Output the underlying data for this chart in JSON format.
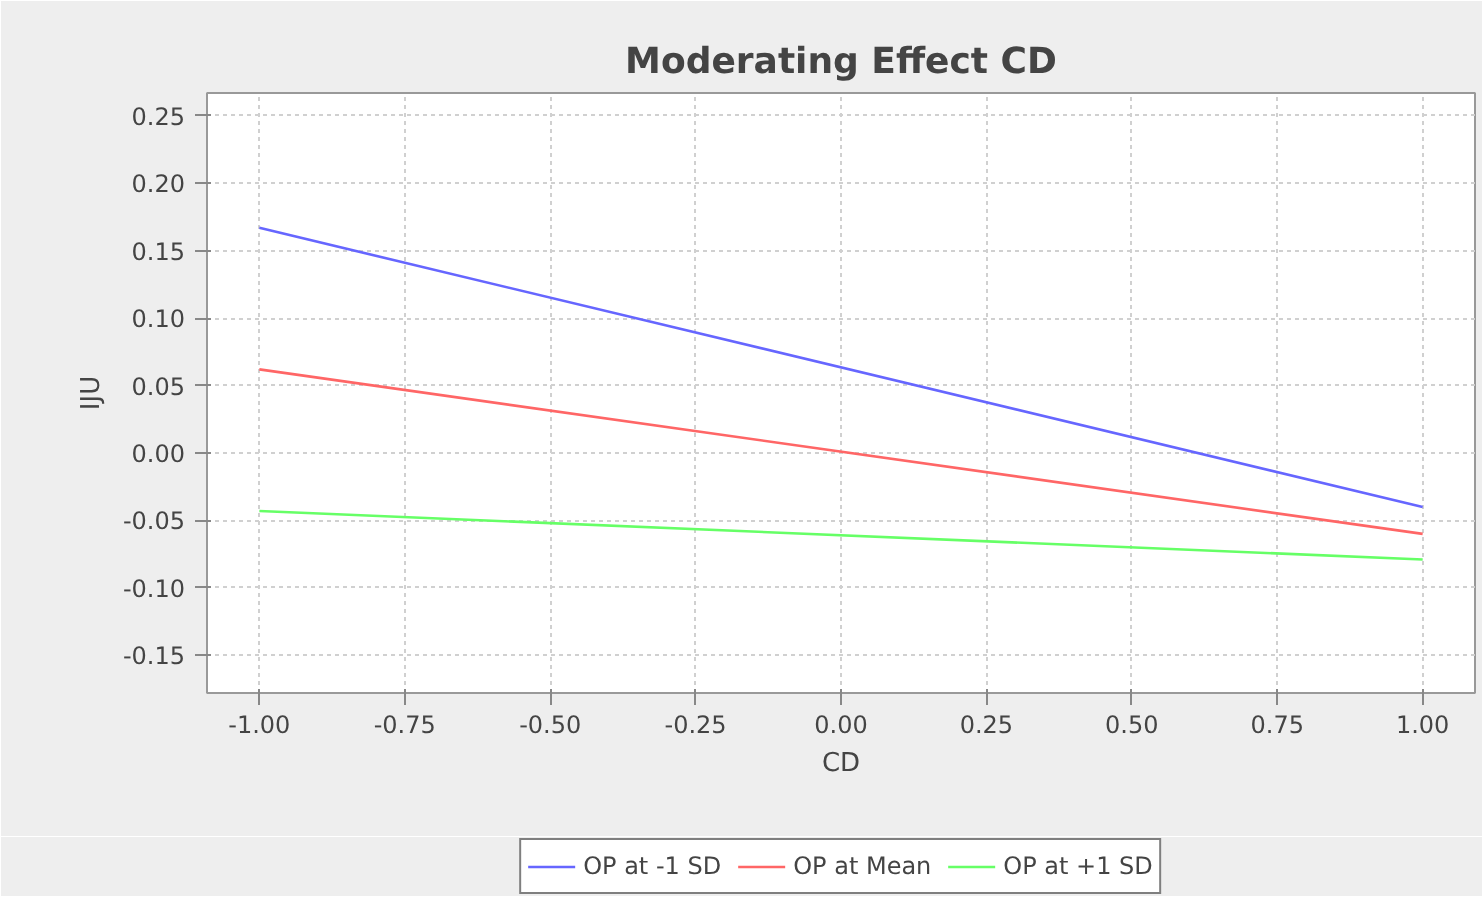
{
  "chart_data": {
    "type": "line",
    "title": "Moderating Effect CD",
    "xlabel": "CD",
    "ylabel": "IJU",
    "x": [
      -1.0,
      1.0
    ],
    "series": [
      {
        "name": "OP at -1 SD",
        "color": "#6666ff",
        "values": [
          0.167,
          -0.04
        ]
      },
      {
        "name": "OP at Mean",
        "color": "#ff6666",
        "values": [
          0.062,
          -0.06
        ]
      },
      {
        "name": "OP at +1 SD",
        "color": "#66ff66",
        "values": [
          -0.043,
          -0.079
        ]
      }
    ],
    "xlim": [
      -1.09,
      1.09
    ],
    "ylim": [
      -0.178,
      0.267
    ],
    "xticks": [
      {
        "value": -1.0,
        "label": "-1.00"
      },
      {
        "value": -0.75,
        "label": "-0.75"
      },
      {
        "value": -0.5,
        "label": "-0.50"
      },
      {
        "value": -0.25,
        "label": "-0.25"
      },
      {
        "value": 0.0,
        "label": "0.00"
      },
      {
        "value": 0.25,
        "label": "0.25"
      },
      {
        "value": 0.5,
        "label": "0.50"
      },
      {
        "value": 0.75,
        "label": "0.75"
      },
      {
        "value": 1.0,
        "label": "1.00"
      }
    ],
    "yticks": [
      {
        "value": -0.15,
        "label": "-0.15"
      },
      {
        "value": -0.1,
        "label": "-0.10"
      },
      {
        "value": -0.05,
        "label": "-0.05"
      },
      {
        "value": 0.0,
        "label": "0.00"
      },
      {
        "value": 0.05,
        "label": "0.05"
      },
      {
        "value": 0.1,
        "label": "0.10"
      },
      {
        "value": 0.15,
        "label": "0.15"
      },
      {
        "value": 0.2,
        "label": "0.20"
      },
      {
        "value": 0.25,
        "label": "0.25"
      }
    ],
    "grid": true,
    "legend": "bottom",
    "marker": "none",
    "line_style": "solid"
  }
}
